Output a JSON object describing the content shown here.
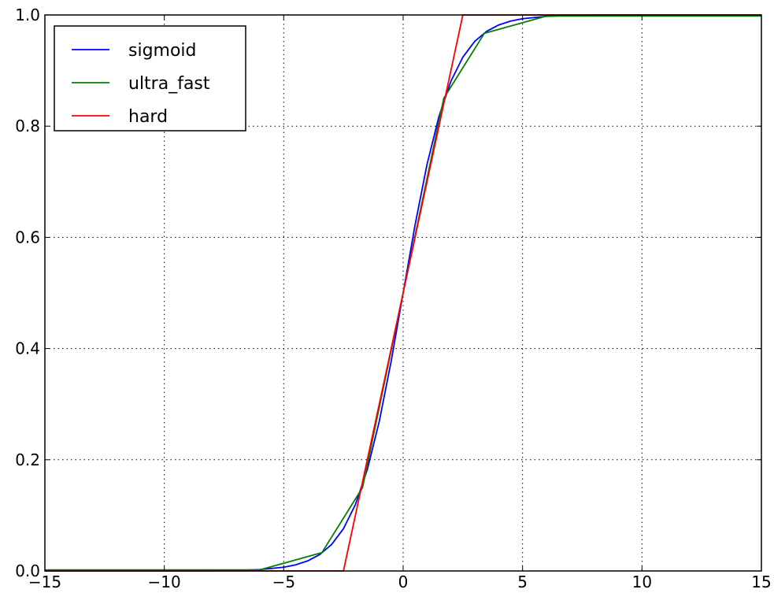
{
  "chart_data": {
    "type": "line",
    "title": "",
    "xlabel": "",
    "ylabel": "",
    "xlim": [
      -15,
      15
    ],
    "ylim": [
      0.0,
      1.0
    ],
    "xticks": [
      -15,
      -10,
      -5,
      0,
      5,
      10,
      15
    ],
    "xtick_labels": [
      "−15",
      "−10",
      "−5",
      "0",
      "5",
      "10",
      "15"
    ],
    "yticks": [
      0.0,
      0.2,
      0.4,
      0.6,
      0.8,
      1.0
    ],
    "ytick_labels": [
      "0.0",
      "0.2",
      "0.4",
      "0.6",
      "0.8",
      "1.0"
    ],
    "grid": true,
    "legend_position": "top-left",
    "series": [
      {
        "name": "sigmoid",
        "color": "#0000ff",
        "x": [
          -15,
          -12,
          -10,
          -8,
          -7,
          -6,
          -5,
          -4.5,
          -4,
          -3.5,
          -3,
          -2.5,
          -2,
          -1.5,
          -1,
          -0.5,
          0,
          0.5,
          1,
          1.5,
          2,
          2.5,
          3,
          3.5,
          4,
          4.5,
          5,
          6,
          7,
          8,
          10,
          12,
          15
        ],
        "y": [
          0.0,
          0.0,
          0.0,
          0.0003,
          0.0009,
          0.0025,
          0.0067,
          0.011,
          0.018,
          0.0293,
          0.0474,
          0.0759,
          0.1192,
          0.1824,
          0.2689,
          0.3775,
          0.5,
          0.6225,
          0.7311,
          0.8176,
          0.8808,
          0.9241,
          0.9526,
          0.9707,
          0.982,
          0.989,
          0.9933,
          0.9975,
          0.9991,
          0.9997,
          1.0,
          1.0,
          1.0
        ]
      },
      {
        "name": "ultra_fast",
        "color": "#008000",
        "x": [
          -15,
          -6,
          -3.4,
          -1.7,
          0,
          1.7,
          3.4,
          6,
          15
        ],
        "y": [
          0.002,
          0.002,
          0.033,
          0.15,
          0.5,
          0.85,
          0.967,
          0.998,
          0.998
        ]
      },
      {
        "name": "hard",
        "color": "#ff0000",
        "x": [
          -15,
          -2.5,
          2.5,
          15
        ],
        "y": [
          0.0,
          0.0,
          1.0,
          1.0
        ]
      }
    ]
  }
}
